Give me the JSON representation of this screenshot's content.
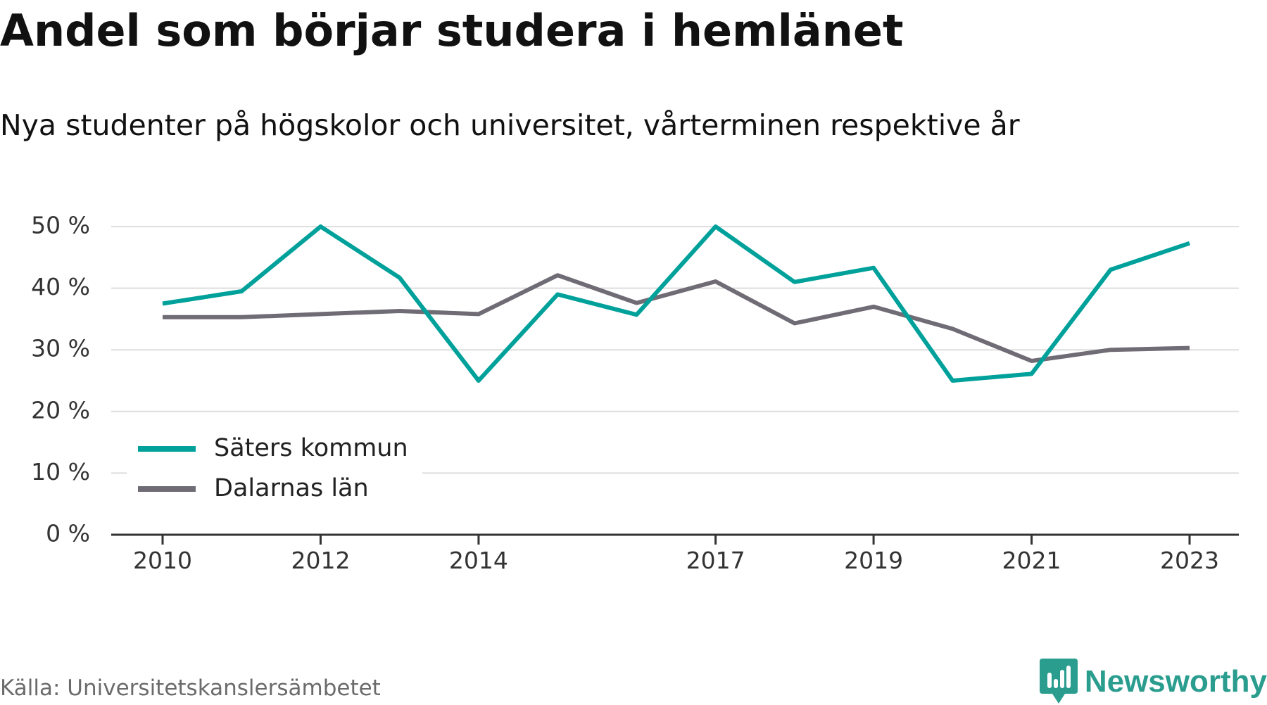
{
  "title": "Andel som börjar studera i hemlänet",
  "subtitle": "Nya studenter på högskolor och universitet, vårterminen respektive år",
  "source": "Källa: Universitetskanslersämbetet",
  "brand": {
    "name": "Newsworthy",
    "logo_icon": "newsworthy-bar-chart-icon",
    "color": "#2a9d8f"
  },
  "chart_data": {
    "type": "line",
    "title": "Andel som börjar studera i hemlänet",
    "subtitle": "Nya studenter på högskolor och universitet, vårterminen respektive år",
    "x": [
      2010,
      2011,
      2012,
      2013,
      2014,
      2015,
      2016,
      2017,
      2018,
      2019,
      2020,
      2021,
      2022,
      2023
    ],
    "xticks": [
      2010,
      2012,
      2014,
      2017,
      2019,
      2021,
      2023
    ],
    "xtick_labels": [
      "2010",
      "2012",
      "2014",
      "2017",
      "2019",
      "2021",
      "2023"
    ],
    "ylim": [
      0,
      50
    ],
    "yticks": [
      0,
      10,
      20,
      30,
      40,
      50
    ],
    "ytick_labels": [
      "0 %",
      "10 %",
      "20 %",
      "30 %",
      "40 %",
      "50 %"
    ],
    "grid": true,
    "legend_position": "bottom-left",
    "series": [
      {
        "name": "Säters kommun",
        "color": "#00a19a",
        "values": [
          37.5,
          39.5,
          50,
          41.7,
          25,
          39,
          35.7,
          50,
          41,
          43.3,
          25,
          26.1,
          43,
          47.3
        ]
      },
      {
        "name": "Dalarnas län",
        "color": "#706c75",
        "values": [
          35.3,
          35.3,
          35.8,
          36.3,
          35.8,
          42.1,
          37.6,
          41.1,
          34.3,
          37,
          33.4,
          28.2,
          30,
          30.3
        ]
      }
    ]
  }
}
